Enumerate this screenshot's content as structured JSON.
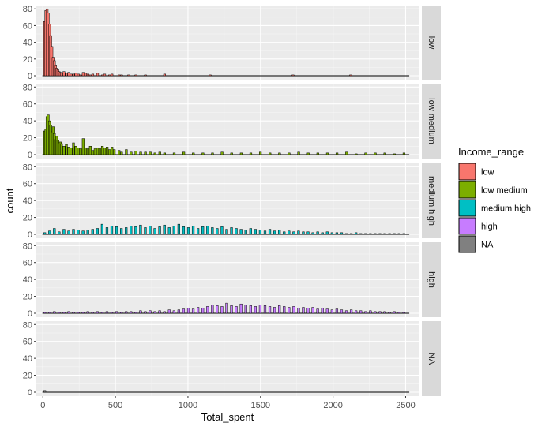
{
  "chart_data": {
    "type": "bar",
    "xlabel": "Total_spent",
    "ylabel": "count",
    "xlim": [
      -45,
      2590
    ],
    "ylim": [
      0,
      84
    ],
    "x_ticks": [
      0,
      500,
      1000,
      1500,
      2000,
      2500
    ],
    "x_tick_labels": [
      "0",
      "500",
      "1000",
      "1500",
      "2000",
      "2500"
    ],
    "y_ticks": [
      0,
      20,
      40,
      60,
      80
    ],
    "y_tick_labels": [
      "0",
      "20",
      "40",
      "60",
      "80"
    ],
    "bin_width": 16.5,
    "bin_start": 5,
    "bin_end": 2525,
    "facet_order": [
      "low",
      "low medium",
      "medium high",
      "high",
      "NA"
    ],
    "legend": {
      "title": "Income_range",
      "placement": "right",
      "entries": [
        {
          "label": "low",
          "color": "#F8766D"
        },
        {
          "label": "low medium",
          "color": "#7CAE00"
        },
        {
          "label": "medium high",
          "color": "#00BFC4"
        },
        {
          "label": "high",
          "color": "#C77CFF"
        },
        {
          "label": "NA",
          "color": "#808080"
        }
      ]
    },
    "series": [
      {
        "name": "low",
        "color": "#F8766D",
        "x": [
          13,
          21,
          29,
          37,
          46,
          54,
          62,
          71,
          79,
          87,
          95,
          104,
          112,
          120,
          128,
          145,
          162,
          178,
          195,
          211,
          228,
          245,
          261,
          278,
          294,
          311,
          327,
          344,
          377,
          410,
          426,
          459,
          476,
          525,
          542,
          591,
          641,
          707,
          839,
          1153,
          1724,
          2121
        ],
        "values": [
          65,
          78,
          80,
          75,
          62,
          48,
          35,
          22,
          18,
          12,
          9,
          7,
          5,
          4,
          3,
          5,
          3,
          4,
          2,
          2,
          3,
          2,
          1,
          4,
          3,
          2,
          1,
          2,
          3,
          1,
          2,
          1,
          2,
          1,
          1,
          1,
          1,
          1,
          2,
          1,
          1,
          1
        ]
      },
      {
        "name": "low medium",
        "color": "#7CAE00",
        "x": [
          13,
          21,
          29,
          37,
          46,
          54,
          62,
          71,
          79,
          87,
          95,
          104,
          112,
          120,
          128,
          145,
          162,
          178,
          195,
          211,
          228,
          245,
          261,
          278,
          294,
          311,
          327,
          344,
          360,
          377,
          393,
          410,
          426,
          443,
          459,
          476,
          492,
          525,
          542,
          575,
          608,
          641,
          674,
          707,
          740,
          773,
          806,
          839,
          905,
          971,
          1037,
          1103,
          1169,
          1235,
          1301,
          1367,
          1433,
          1499,
          1565,
          1631,
          1697,
          1763,
          1829,
          1895,
          1961,
          2027,
          2093,
          2159,
          2225,
          2291,
          2357,
          2423,
          2489
        ],
        "values": [
          28,
          30,
          45,
          47,
          40,
          35,
          27,
          33,
          25,
          18,
          22,
          17,
          14,
          15,
          13,
          10,
          12,
          9,
          8,
          14,
          10,
          8,
          7,
          19,
          8,
          7,
          10,
          5,
          7,
          8,
          7,
          10,
          8,
          9,
          6,
          9,
          6,
          5,
          3,
          6,
          3,
          4,
          3,
          3,
          3,
          2,
          3,
          2,
          2,
          3,
          2,
          2,
          2,
          3,
          2,
          2,
          2,
          3,
          2,
          2,
          2,
          3,
          2,
          2,
          2,
          2,
          3,
          1,
          2,
          2,
          2,
          1,
          2
        ]
      },
      {
        "name": "medium high",
        "color": "#00BFC4",
        "x": [
          13,
          46,
          79,
          112,
          145,
          178,
          211,
          244,
          277,
          310,
          343,
          376,
          409,
          442,
          475,
          508,
          541,
          574,
          607,
          640,
          673,
          706,
          739,
          772,
          805,
          838,
          871,
          904,
          937,
          970,
          1003,
          1036,
          1069,
          1102,
          1135,
          1168,
          1201,
          1234,
          1267,
          1300,
          1333,
          1366,
          1399,
          1432,
          1465,
          1498,
          1531,
          1564,
          1597,
          1630,
          1663,
          1696,
          1729,
          1762,
          1795,
          1828,
          1861,
          1894,
          1927,
          1960,
          1993,
          2026,
          2059,
          2092,
          2125,
          2158,
          2191,
          2224,
          2257,
          2290,
          2323,
          2356,
          2389,
          2422,
          2455,
          2488
        ],
        "values": [
          2,
          4,
          7,
          3,
          6,
          4,
          6,
          5,
          4,
          5,
          6,
          7,
          12,
          8,
          10,
          9,
          7,
          8,
          10,
          9,
          11,
          8,
          10,
          7,
          9,
          11,
          8,
          10,
          12,
          9,
          8,
          10,
          7,
          9,
          10,
          8,
          7,
          9,
          6,
          8,
          7,
          6,
          5,
          7,
          6,
          5,
          4,
          6,
          4,
          5,
          3,
          4,
          3,
          4,
          3,
          3,
          2,
          3,
          2,
          3,
          2,
          2,
          2,
          1,
          1,
          2,
          1,
          1,
          1,
          1,
          1,
          1,
          1,
          1,
          1,
          1
        ]
      },
      {
        "name": "high",
        "color": "#C77CFF",
        "x": [
          13,
          46,
          79,
          112,
          145,
          178,
          211,
          244,
          277,
          310,
          343,
          376,
          409,
          442,
          475,
          508,
          541,
          574,
          607,
          640,
          673,
          706,
          739,
          772,
          805,
          838,
          871,
          904,
          937,
          970,
          1003,
          1036,
          1069,
          1102,
          1135,
          1168,
          1201,
          1234,
          1267,
          1300,
          1333,
          1366,
          1399,
          1432,
          1465,
          1498,
          1531,
          1564,
          1597,
          1630,
          1663,
          1696,
          1729,
          1762,
          1795,
          1828,
          1861,
          1894,
          1927,
          1960,
          1993,
          2026,
          2059,
          2092,
          2125,
          2158,
          2191,
          2224,
          2257,
          2290,
          2323,
          2356,
          2389,
          2422,
          2455,
          2488
        ],
        "values": [
          1,
          1,
          2,
          1,
          1,
          2,
          1,
          1,
          1,
          2,
          1,
          2,
          1,
          2,
          1,
          2,
          1,
          2,
          2,
          1,
          3,
          2,
          3,
          2,
          3,
          2,
          4,
          3,
          4,
          5,
          6,
          5,
          7,
          6,
          8,
          10,
          9,
          8,
          12,
          9,
          8,
          11,
          10,
          9,
          8,
          10,
          9,
          8,
          7,
          9,
          8,
          7,
          8,
          6,
          7,
          6,
          7,
          5,
          6,
          5,
          4,
          5,
          4,
          3,
          4,
          3,
          3,
          2,
          3,
          2,
          2,
          2,
          1,
          2,
          1,
          1
        ]
      },
      {
        "name": "NA",
        "color": "#808080",
        "x": [
          13
        ],
        "values": [
          2
        ]
      }
    ]
  }
}
